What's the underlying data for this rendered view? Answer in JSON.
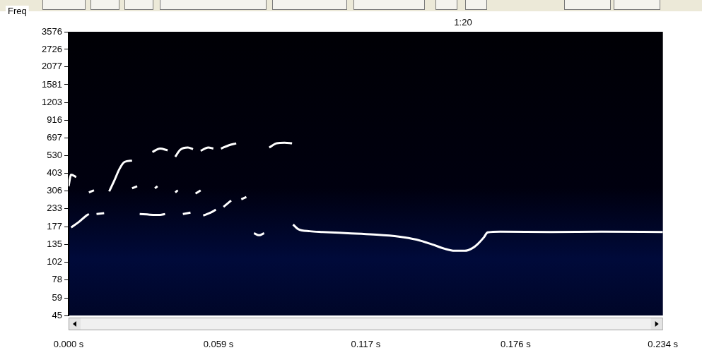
{
  "chart_data": {
    "type": "line",
    "y_label": "Freq",
    "annotations": [
      "1:20"
    ],
    "x": [
      0.0,
      0.001,
      0.003,
      0.003,
      0.001,
      0.004,
      0.007,
      0.008,
      0.008,
      0.008,
      0.01,
      0.01,
      0.011,
      0.014,
      0.014,
      0.016,
      0.018,
      0.02,
      0.022,
      0.025,
      0.025,
      0.025,
      0.027,
      0.027,
      0.028,
      0.032,
      0.036,
      0.038,
      0.038,
      0.033,
      0.036,
      0.039,
      0.039,
      0.034,
      0.035,
      0.035,
      0.042,
      0.044,
      0.047,
      0.049,
      0.049,
      0.042,
      0.043,
      0.043,
      0.045,
      0.048,
      0.048,
      0.052,
      0.055,
      0.057,
      0.057,
      0.05,
      0.052,
      0.052,
      0.053,
      0.056,
      0.058,
      0.058,
      0.06,
      0.063,
      0.066,
      0.066,
      0.061,
      0.064,
      0.064,
      0.068,
      0.07,
      0.07,
      0.073,
      0.075,
      0.077,
      0.077,
      0.079,
      0.082,
      0.085,
      0.088,
      0.088,
      0.0884,
      0.0905,
      0.095,
      0.1,
      0.11,
      0.12,
      0.13,
      0.137,
      0.143,
      0.148,
      0.152,
      0.156,
      0.159,
      0.161,
      0.1635,
      0.165,
      0.17,
      0.19,
      0.21,
      0.234
    ],
    "values": [
      330,
      395,
      380,
      null,
      175,
      190,
      210,
      215,
      null,
      300,
      310,
      null,
      215,
      218,
      null,
      305,
      360,
      430,
      480,
      490,
      null,
      320,
      330,
      null,
      215,
      213,
      212,
      215,
      null,
      560,
      590,
      575,
      null,
      320,
      330,
      null,
      520,
      580,
      600,
      585,
      null,
      300,
      310,
      null,
      215,
      220,
      null,
      570,
      600,
      590,
      null,
      295,
      310,
      null,
      210,
      220,
      230,
      null,
      590,
      620,
      640,
      null,
      240,
      265,
      null,
      270,
      280,
      null,
      160,
      155,
      160,
      null,
      600,
      640,
      645,
      640,
      null,
      183,
      170,
      165,
      163,
      160,
      157,
      152,
      145,
      135,
      126,
      122,
      122,
      127,
      135,
      150,
      162,
      164,
      163,
      164,
      163
    ],
    "color": "#ffffff",
    "xlim": [
      0,
      0.234
    ],
    "xticks": [
      {
        "value": 0,
        "label": "0.000 s"
      },
      {
        "value": 0.059,
        "label": "0.059 s"
      },
      {
        "value": 0.117,
        "label": "0.117 s"
      },
      {
        "value": 0.176,
        "label": "0.176 s"
      },
      {
        "value": 0.234,
        "label": "0.234 s"
      }
    ],
    "ylim": [
      45,
      3576
    ],
    "yticks": [
      45,
      59,
      78,
      102,
      135,
      177,
      233,
      306,
      403,
      530,
      697,
      916,
      1203,
      1581,
      2077,
      2726,
      3576
    ],
    "log": "y",
    "grid": false,
    "marker": "none",
    "line_style": "solid"
  }
}
